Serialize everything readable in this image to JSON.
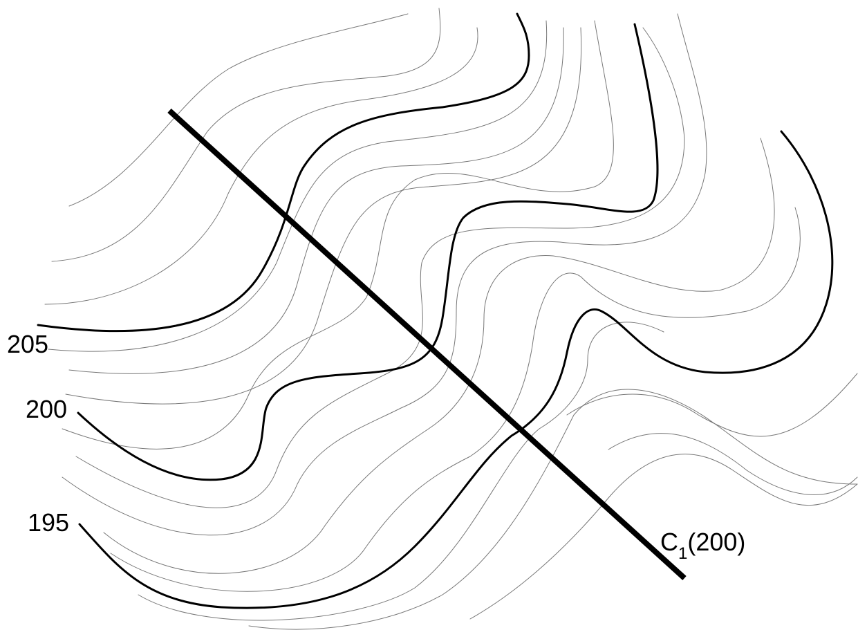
{
  "contour_labels": {
    "c205": "205",
    "c200": "200",
    "c195": "195"
  },
  "section": {
    "name": "C",
    "subscript": "1",
    "value": "(200)"
  },
  "colors": {
    "index_contour": "#000000",
    "minor_contour": "#777777",
    "section_line": "#000000",
    "background": "#ffffff"
  }
}
